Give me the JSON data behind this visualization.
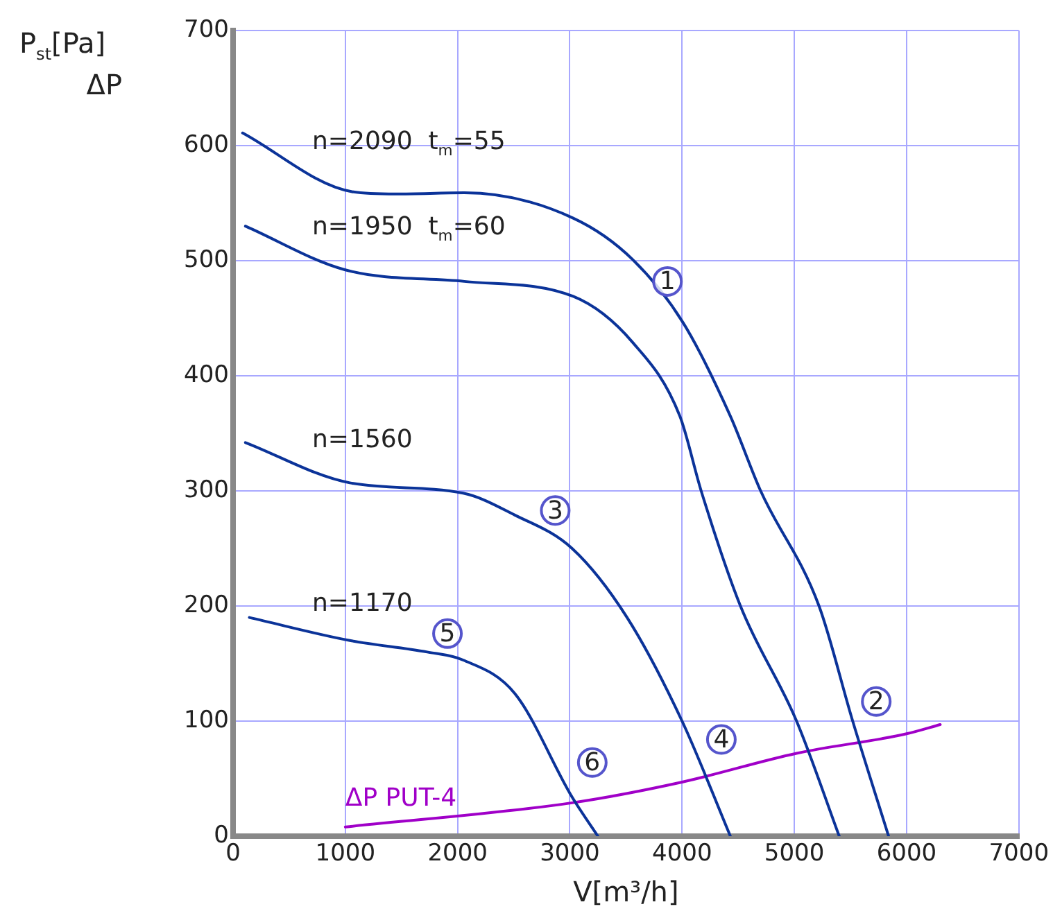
{
  "chart_data": {
    "type": "line",
    "xlabel": "V[m³/h]",
    "ylabel": "P$_{st}$[Pa]\nΔP",
    "xlim": [
      0,
      7000
    ],
    "xticks": [
      0,
      1000,
      2000,
      3000,
      4000,
      5000,
      6000,
      7000
    ],
    "ylim": [
      0,
      700
    ],
    "yticks": [
      0,
      100,
      200,
      300,
      400,
      500,
      600,
      700
    ],
    "grid": true,
    "legend": false,
    "marker": "none",
    "line_style": "solid",
    "series": [
      {
        "name": "n=2090  t$_{m}$=55",
        "color": "#0b3399",
        "x": [
          85,
          1060,
          1450,
          2060,
          3030,
          3560,
          4010,
          4430,
          4700,
          5220,
          5520,
          5840
        ],
        "values": [
          611,
          560,
          558,
          559,
          537,
          501,
          446,
          365,
          300,
          200,
          100,
          0
        ]
      },
      {
        "name": "n=1950  t$_{m}$=60",
        "color": "#0b3399",
        "x": [
          110,
          1000,
          2060,
          3030,
          3560,
          3980,
          4170,
          4520,
          5020,
          5400
        ],
        "values": [
          530,
          492,
          482,
          469,
          429,
          365,
          300,
          200,
          100,
          0
        ]
      },
      {
        "name": "n=1560",
        "color": "#0b3399",
        "x": [
          110,
          1040,
          2050,
          2510,
          3020,
          3510,
          4000,
          4430
        ],
        "values": [
          342,
          307,
          298,
          279,
          250,
          190,
          100,
          0
        ]
      },
      {
        "name": "n=1170",
        "color": "#0b3399",
        "x": [
          145,
          1040,
          1730,
          2050,
          2510,
          3020,
          3250
        ],
        "values": [
          190,
          170,
          160,
          153,
          124,
          34,
          0
        ]
      },
      {
        "name": "ΔP PUT-4",
        "color": "#a000c8",
        "x": [
          1000,
          3020,
          4000,
          5020,
          6000,
          6300
        ],
        "values": [
          8,
          29,
          47,
          72,
          89,
          97
        ]
      }
    ],
    "annotations": [
      {
        "text": "1",
        "x": 3870,
        "y": 482
      },
      {
        "text": "2",
        "x": 5730,
        "y": 117
      },
      {
        "text": "3",
        "x": 2870,
        "y": 283
      },
      {
        "text": "4",
        "x": 4350,
        "y": 84
      },
      {
        "text": "5",
        "x": 1910,
        "y": 176
      },
      {
        "text": "6",
        "x": 3200,
        "y": 64
      }
    ]
  }
}
